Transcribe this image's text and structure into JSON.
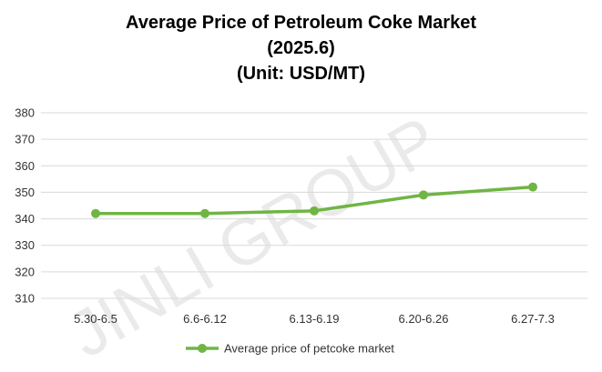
{
  "watermark": "JINLI GROUP",
  "chart_data": {
    "type": "line",
    "title_lines": [
      "Average Price of Petroleum Coke Market",
      "(2025.6)",
      "(Unit: USD/MT)"
    ],
    "categories": [
      "5.30-6.5",
      "6.6-6.12",
      "6.13-6.19",
      "6.20-6.26",
      "6.27-7.3"
    ],
    "series": [
      {
        "name": "Average price of petcoke market",
        "values": [
          342,
          342,
          343,
          349,
          352
        ],
        "color": "#70b544"
      }
    ],
    "yticks": [
      310,
      320,
      330,
      340,
      350,
      360,
      370,
      380
    ],
    "ylim": [
      310,
      380
    ],
    "grid": true,
    "legend": "bottom"
  }
}
